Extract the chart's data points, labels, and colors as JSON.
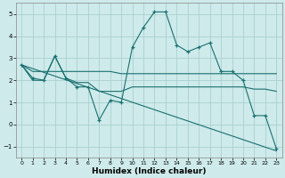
{
  "xlabel": "Humidex (Indice chaleur)",
  "background_color": "#ceeaea",
  "line_color": "#1a7070",
  "grid_color": "#aad0d0",
  "hours": [
    0,
    1,
    2,
    3,
    4,
    5,
    6,
    7,
    8,
    9,
    10,
    11,
    12,
    13,
    14,
    15,
    16,
    17,
    18,
    19,
    20,
    21,
    22,
    23
  ],
  "series_main": [
    2.7,
    2.1,
    2.0,
    3.1,
    2.1,
    1.7,
    1.7,
    0.2,
    1.1,
    1.0,
    3.5,
    4.4,
    5.1,
    5.1,
    3.6,
    3.3,
    3.5,
    3.7,
    2.4,
    2.4,
    2.0,
    0.4,
    0.4,
    -1.1
  ],
  "series_upper": [
    2.7,
    2.4,
    2.4,
    2.4,
    2.4,
    2.4,
    2.4,
    2.4,
    2.4,
    2.3,
    2.3,
    2.3,
    2.3,
    2.3,
    2.3,
    2.3,
    2.3,
    2.3,
    2.3,
    2.3,
    2.3,
    2.3,
    2.3,
    2.3
  ],
  "series_lower": [
    2.7,
    2.0,
    2.0,
    3.1,
    2.1,
    1.9,
    1.9,
    1.5,
    1.5,
    1.5,
    1.7,
    1.7,
    1.7,
    1.7,
    1.7,
    1.7,
    1.7,
    1.7,
    1.7,
    1.7,
    1.7,
    1.6,
    1.6,
    1.5
  ],
  "trend_line_x": [
    0,
    23
  ],
  "trend_line_y": [
    2.7,
    -1.2
  ],
  "ylim": [
    -1.5,
    5.5
  ],
  "yticks": [
    -1,
    0,
    1,
    2,
    3,
    4,
    5
  ],
  "xticks": [
    0,
    1,
    2,
    3,
    4,
    5,
    6,
    7,
    8,
    9,
    10,
    11,
    12,
    13,
    14,
    15,
    16,
    17,
    18,
    19,
    20,
    21,
    22,
    23
  ],
  "xlim": [
    -0.5,
    23.5
  ]
}
